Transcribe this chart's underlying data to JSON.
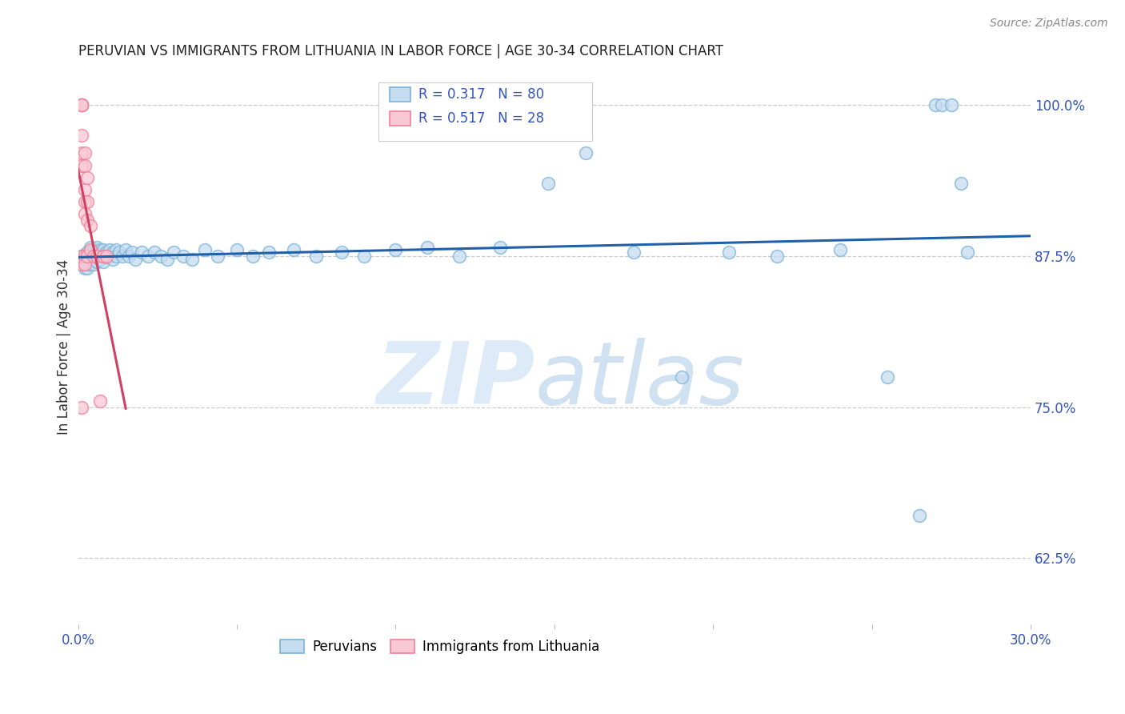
{
  "title": "PERUVIAN VS IMMIGRANTS FROM LITHUANIA IN LABOR FORCE | AGE 30-34 CORRELATION CHART",
  "source": "Source: ZipAtlas.com",
  "ylabel": "In Labor Force | Age 30-34",
  "xlim": [
    0.0,
    0.3
  ],
  "ylim": [
    0.57,
    1.03
  ],
  "yticks": [
    0.625,
    0.75,
    0.875,
    1.0
  ],
  "yticklabels": [
    "62.5%",
    "75.0%",
    "87.5%",
    "100.0%"
  ],
  "blue_R": "R = 0.317",
  "blue_N": "N = 80",
  "pink_R": "R = 0.517",
  "pink_N": "N = 28",
  "blue_face": "#c6dcf0",
  "blue_edge": "#7ab3d9",
  "pink_face": "#f9c8d5",
  "pink_edge": "#f08098",
  "line_blue": "#2060a8",
  "line_pink": "#d04060",
  "legend_blue_label": "Peruvians",
  "legend_pink_label": "Immigrants from Lithuania",
  "blue_x": [
    0.001,
    0.001,
    0.001,
    0.002,
    0.002,
    0.002,
    0.002,
    0.003,
    0.003,
    0.003,
    0.003,
    0.003,
    0.004,
    0.004,
    0.004,
    0.004,
    0.004,
    0.005,
    0.005,
    0.005,
    0.005,
    0.006,
    0.006,
    0.006,
    0.006,
    0.007,
    0.007,
    0.007,
    0.008,
    0.008,
    0.008,
    0.009,
    0.009,
    0.01,
    0.01,
    0.011,
    0.011,
    0.012,
    0.012,
    0.013,
    0.014,
    0.015,
    0.016,
    0.017,
    0.018,
    0.02,
    0.022,
    0.024,
    0.026,
    0.028,
    0.03,
    0.033,
    0.036,
    0.04,
    0.044,
    0.05,
    0.055,
    0.06,
    0.068,
    0.075,
    0.083,
    0.09,
    0.1,
    0.11,
    0.12,
    0.133,
    0.148,
    0.16,
    0.175,
    0.19,
    0.205,
    0.22,
    0.24,
    0.255,
    0.265,
    0.27,
    0.272,
    0.275,
    0.278,
    0.28
  ],
  "blue_y": [
    0.875,
    0.872,
    0.868,
    0.876,
    0.872,
    0.868,
    0.865,
    0.878,
    0.875,
    0.872,
    0.868,
    0.865,
    0.882,
    0.878,
    0.875,
    0.872,
    0.868,
    0.88,
    0.876,
    0.872,
    0.868,
    0.882,
    0.878,
    0.875,
    0.87,
    0.88,
    0.876,
    0.872,
    0.88,
    0.875,
    0.87,
    0.878,
    0.874,
    0.88,
    0.875,
    0.878,
    0.872,
    0.88,
    0.875,
    0.878,
    0.875,
    0.88,
    0.875,
    0.878,
    0.872,
    0.878,
    0.875,
    0.878,
    0.875,
    0.872,
    0.878,
    0.875,
    0.872,
    0.88,
    0.875,
    0.88,
    0.875,
    0.878,
    0.88,
    0.875,
    0.878,
    0.875,
    0.88,
    0.882,
    0.875,
    0.882,
    0.935,
    0.96,
    0.878,
    0.775,
    0.878,
    0.875,
    0.88,
    0.775,
    0.66,
    1.0,
    1.0,
    1.0,
    0.935,
    0.878
  ],
  "pink_x": [
    0.001,
    0.001,
    0.001,
    0.001,
    0.001,
    0.001,
    0.001,
    0.001,
    0.001,
    0.001,
    0.002,
    0.002,
    0.002,
    0.002,
    0.002,
    0.002,
    0.002,
    0.003,
    0.003,
    0.003,
    0.003,
    0.004,
    0.004,
    0.005,
    0.006,
    0.007,
    0.008,
    0.009
  ],
  "pink_y": [
    1.0,
    1.0,
    1.0,
    1.0,
    0.975,
    0.96,
    0.95,
    0.875,
    0.868,
    0.75,
    0.96,
    0.95,
    0.93,
    0.92,
    0.91,
    0.875,
    0.868,
    0.94,
    0.92,
    0.905,
    0.875,
    0.9,
    0.88,
    0.875,
    0.875,
    0.755,
    0.875,
    0.875
  ]
}
